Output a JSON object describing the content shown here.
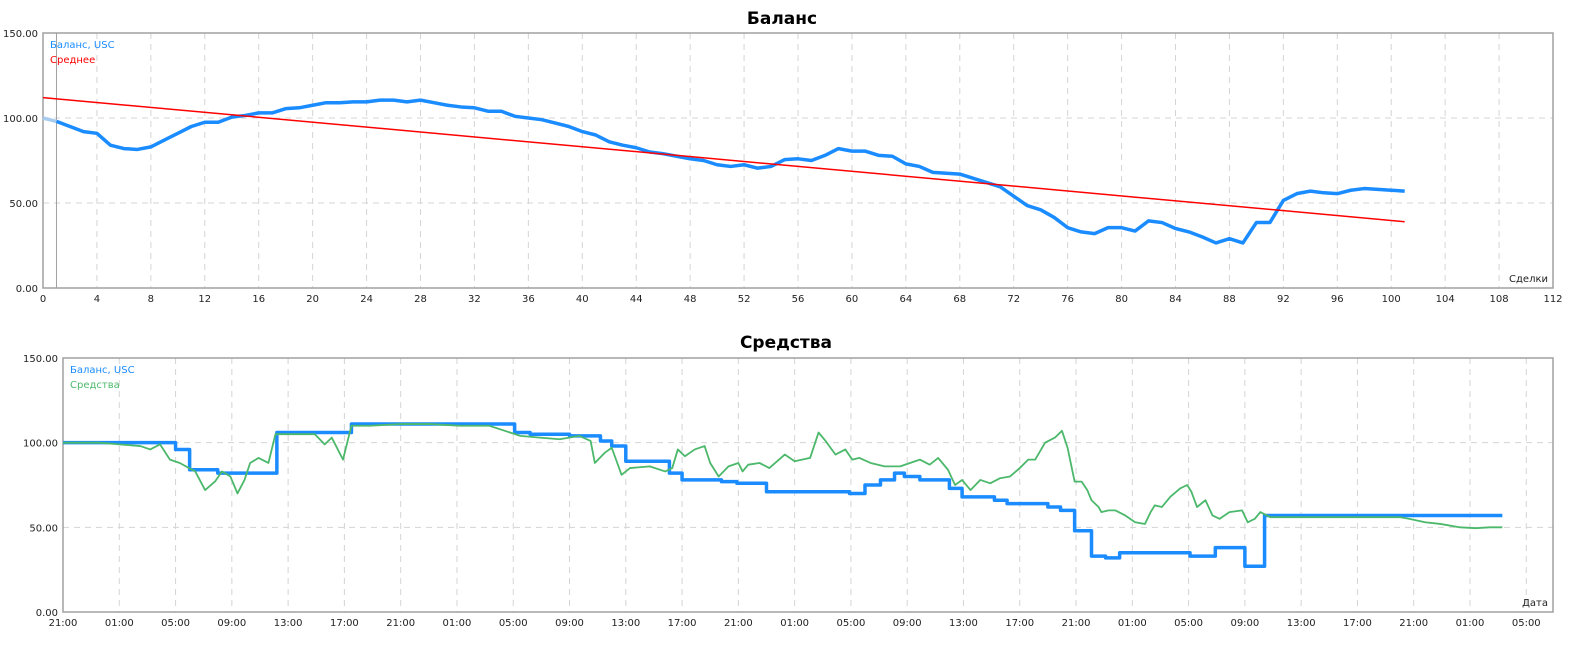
{
  "chart_data": [
    {
      "type": "line",
      "title": "Баланс",
      "xlabel": "Сделки",
      "ylabel": "",
      "xlim": [
        0,
        112
      ],
      "ylim": [
        0,
        150
      ],
      "grid": true,
      "legend_position": "top-left",
      "x_ticks": [
        "0",
        "4",
        "8",
        "12",
        "16",
        "20",
        "24",
        "28",
        "32",
        "36",
        "40",
        "44",
        "48",
        "52",
        "56",
        "60",
        "64",
        "68",
        "72",
        "76",
        "80",
        "84",
        "88",
        "92",
        "96",
        "100",
        "104",
        "108",
        "112"
      ],
      "y_ticks": [
        "0.00",
        "50.00",
        "100.00",
        "150.00"
      ],
      "series": [
        {
          "name": "Баланс, USC",
          "color": "#1a8cff",
          "values": [
            100,
            98,
            95,
            92,
            91,
            84,
            82,
            81.5,
            83,
            87,
            91,
            95,
            97.5,
            97.5,
            100.5,
            101.5,
            103,
            103,
            105.5,
            106,
            107.5,
            109,
            109,
            109.5,
            109.5,
            110.5,
            110.5,
            109.5,
            110.5,
            109,
            107.5,
            106.5,
            106,
            104,
            104,
            101,
            100,
            99,
            97,
            95,
            92,
            90,
            86,
            84,
            82.5,
            80,
            79,
            77.5,
            76,
            75,
            72.5,
            71.5,
            72.5,
            70.5,
            71.5,
            75.5,
            76,
            75,
            78,
            82,
            80.5,
            80.5,
            78,
            77.5,
            73,
            71.5,
            68,
            67.5,
            67,
            64.5,
            62,
            59.5,
            54,
            48.5,
            46,
            41.5,
            35.5,
            33,
            32,
            35.5,
            35.5,
            33.5,
            39.5,
            38.5,
            35,
            33,
            30,
            26.5,
            29,
            26.5,
            38.5,
            38.5,
            51.5,
            55.5,
            57,
            56,
            55.5,
            57.5,
            58.5,
            58,
            57.5,
            57
          ]
        },
        {
          "name": "Среднее",
          "color": "#ff0000",
          "x": [
            0,
            101
          ],
          "values": [
            112,
            39
          ]
        }
      ]
    },
    {
      "type": "line",
      "title": "Средства",
      "xlabel": "Дата",
      "x_unit": "hours from first tick",
      "xlim": [
        0,
        105.9
      ],
      "ylim": [
        0,
        150
      ],
      "grid": true,
      "legend_position": "top-left",
      "x_ticks": [
        "21:00",
        "01:00",
        "05:00",
        "09:00",
        "13:00",
        "17:00",
        "21:00",
        "01:00",
        "05:00",
        "09:00",
        "13:00",
        "17:00",
        "21:00",
        "01:00",
        "05:00",
        "09:00",
        "13:00",
        "17:00",
        "21:00",
        "01:00",
        "05:00",
        "09:00",
        "13:00",
        "17:00",
        "21:00",
        "01:00",
        "05:00"
      ],
      "x_tick_step_hours": 4,
      "y_ticks": [
        "0.00",
        "50.00",
        "100.00",
        "150.00"
      ],
      "series": [
        {
          "name": "Баланс, USC",
          "color": "#1a8cff",
          "step": true,
          "x": [
            0,
            8.0,
            9.0,
            11.0,
            15.2,
            20.5,
            32.1,
            33.2,
            36.0,
            38.2,
            39.0,
            40.0,
            43.1,
            44.0,
            46.8,
            47.9,
            50.0,
            55.9,
            57.0,
            58.1,
            59.1,
            59.8,
            60.9,
            63.0,
            63.9,
            66.2,
            67.1,
            70.0,
            70.9,
            71.9,
            73.1,
            74.1,
            75.1,
            80.1,
            81.9,
            84.0,
            85.4,
            102.3
          ],
          "values": [
            100,
            96,
            84,
            82,
            106,
            111,
            106,
            105,
            104,
            101,
            98,
            89,
            82,
            78,
            77,
            76,
            71,
            70,
            75,
            78,
            82,
            80,
            78,
            73,
            68,
            66,
            64,
            62,
            60,
            48,
            33,
            32,
            35,
            33,
            38,
            27,
            57,
            57
          ]
        },
        {
          "name": "Средства",
          "color": "#4cb86b",
          "x": [
            0,
            2.6,
            4.0,
            5.5,
            6.2,
            6.9,
            7.6,
            8.3,
            9.4,
            10.1,
            10.8,
            11.3,
            11.9,
            12.4,
            12.9,
            13.3,
            13.9,
            14.6,
            15.1,
            16.8,
            17.9,
            18.6,
            19.1,
            19.9,
            20.5,
            21.8,
            24.0,
            26.1,
            28.2,
            30.3,
            31.4,
            32.5,
            33.9,
            35.3,
            36.7,
            37.5,
            37.8,
            38.5,
            39.0,
            39.7,
            40.3,
            41.7,
            42.8,
            43.3,
            43.7,
            44.2,
            44.9,
            45.6,
            46.0,
            46.6,
            47.3,
            48.0,
            48.3,
            48.7,
            49.5,
            50.2,
            51.3,
            52.0,
            53.1,
            53.7,
            54.2,
            54.9,
            55.6,
            56.1,
            56.6,
            57.4,
            58.4,
            59.5,
            60.2,
            60.9,
            61.6,
            62.2,
            62.9,
            63.4,
            63.9,
            64.5,
            65.2,
            65.9,
            66.6,
            67.3,
            68.0,
            68.6,
            69.1,
            69.8,
            70.5,
            71.0,
            71.4,
            71.9,
            72.4,
            72.8,
            73.1,
            73.6,
            73.8,
            74.3,
            74.8,
            75.5,
            76.2,
            76.9,
            77.3,
            77.6,
            78.1,
            78.7,
            79.4,
            79.9,
            80.2,
            80.6,
            81.2,
            81.7,
            82.2,
            82.9,
            83.8,
            84.2,
            84.7,
            85.1,
            85.8,
            87.9,
            91.5,
            95.0,
            95.7,
            96.8,
            97.9,
            99.3,
            100.4,
            101.4,
            102.3
          ],
          "values": [
            100,
            100,
            99,
            98,
            96,
            99,
            90,
            88,
            83,
            72,
            77,
            83,
            80,
            70,
            78,
            88,
            91,
            88,
            105,
            105,
            105,
            99,
            103,
            90,
            110,
            110,
            111,
            111,
            110,
            110,
            107,
            104,
            103,
            102,
            104,
            101,
            88,
            94,
            97,
            81,
            85,
            86,
            83,
            85,
            96,
            92,
            96,
            98,
            88,
            80,
            86,
            88,
            83,
            87,
            88,
            85,
            93,
            89,
            91,
            106,
            101,
            93,
            96,
            90,
            91,
            88,
            86,
            86,
            88,
            90,
            87,
            91,
            84,
            75,
            78,
            72,
            78,
            76,
            79,
            80,
            85,
            90,
            90,
            100,
            103,
            107,
            97,
            77,
            77,
            72,
            66,
            62,
            59,
            60,
            60,
            57,
            53,
            52,
            59,
            63,
            62,
            68,
            73,
            75,
            71,
            62,
            66,
            57,
            55,
            59,
            60,
            53,
            55,
            59,
            56,
            56,
            56,
            56,
            55,
            53,
            52,
            50,
            49.5,
            50,
            50
          ]
        }
      ]
    }
  ]
}
